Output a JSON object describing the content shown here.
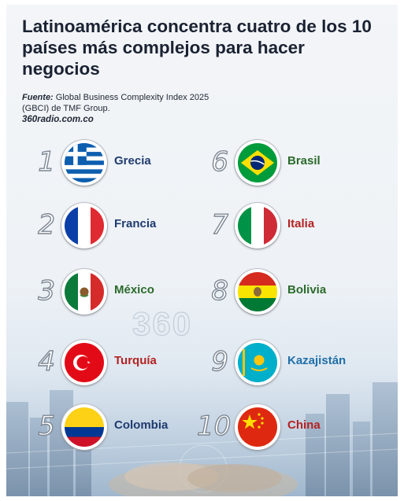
{
  "title": "Latinoamérica concentra cuatro de los 10 países más complejos para hacer negocios",
  "source": {
    "label": "Fuente:",
    "text": "Global Business Complexity Index 2025",
    "text2": "(GBCI) de TMF Group.",
    "site": "360radio.com.co"
  },
  "watermark": "360",
  "colors": {
    "europe": "#1f3b6f",
    "latam": "#2b6a2b",
    "asia": "#b42222"
  },
  "ranking": [
    {
      "rank": "1",
      "country": "Grecia",
      "flag_icon": "greece-flag-icon",
      "color": "#1f3b6f"
    },
    {
      "rank": "2",
      "country": "Francia",
      "flag_icon": "france-flag-icon",
      "color": "#1f3b6f"
    },
    {
      "rank": "3",
      "country": "México",
      "flag_icon": "mexico-flag-icon",
      "color": "#2b6a2b"
    },
    {
      "rank": "4",
      "country": "Turquía",
      "flag_icon": "turkey-flag-icon",
      "color": "#b42222"
    },
    {
      "rank": "5",
      "country": "Colombia",
      "flag_icon": "colombia-flag-icon",
      "color": "#1f3b6f"
    },
    {
      "rank": "6",
      "country": "Brasil",
      "flag_icon": "brazil-flag-icon",
      "color": "#2b6a2b"
    },
    {
      "rank": "7",
      "country": "Italia",
      "flag_icon": "italy-flag-icon",
      "color": "#b42222"
    },
    {
      "rank": "8",
      "country": "Bolivia",
      "flag_icon": "bolivia-flag-icon",
      "color": "#2b6a2b"
    },
    {
      "rank": "9",
      "country": "Kazajistán",
      "flag_icon": "kazakhstan-flag-icon",
      "color": "#1f6fa8"
    },
    {
      "rank": "10",
      "country": "China",
      "flag_icon": "china-flag-icon",
      "color": "#b42222"
    }
  ]
}
